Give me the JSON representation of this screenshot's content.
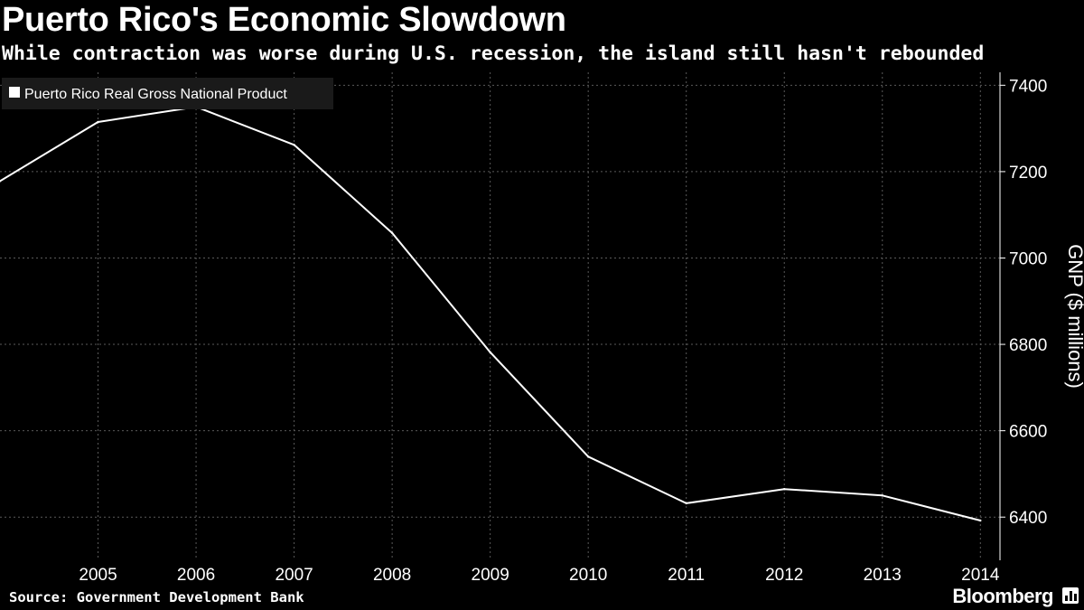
{
  "header": {
    "title": "Puerto Rico's Economic Slowdown",
    "subtitle": "While contraction was worse during U.S. recession, the island still hasn't rebounded"
  },
  "footer": {
    "source": "Source: Government Development Bank",
    "brand": "Bloomberg"
  },
  "colors": {
    "background": "#000000",
    "line": "#ffffff",
    "grid": "#5a5a5a",
    "legend_bg": "#1a1a1a"
  },
  "chart_data": {
    "type": "line",
    "title": "Puerto Rico's Economic Slowdown",
    "subtitle": "While contraction was worse during U.S. recession, the island still hasn't rebounded",
    "ylabel": "GNP ($ millions)",
    "xlabel": "",
    "x_ticks": [
      2005,
      2006,
      2007,
      2008,
      2009,
      2010,
      2011,
      2012,
      2013,
      2014
    ],
    "y_ticks": [
      6400,
      6600,
      6800,
      7000,
      7200,
      7400
    ],
    "xlim": [
      2004,
      2014.2
    ],
    "ylim": [
      6300,
      7430
    ],
    "grid": true,
    "y_axis_position": "right",
    "legend_position": "top-left",
    "series": [
      {
        "name": "Puerto Rico Real Gross National Product",
        "color": "#ffffff",
        "x": [
          2004,
          2005,
          2006,
          2007,
          2008,
          2009,
          2010,
          2011,
          2012,
          2013,
          2014
        ],
        "values": [
          7178,
          7315,
          7350,
          7262,
          7058,
          6782,
          6540,
          6432,
          6465,
          6450,
          6392
        ]
      }
    ]
  }
}
